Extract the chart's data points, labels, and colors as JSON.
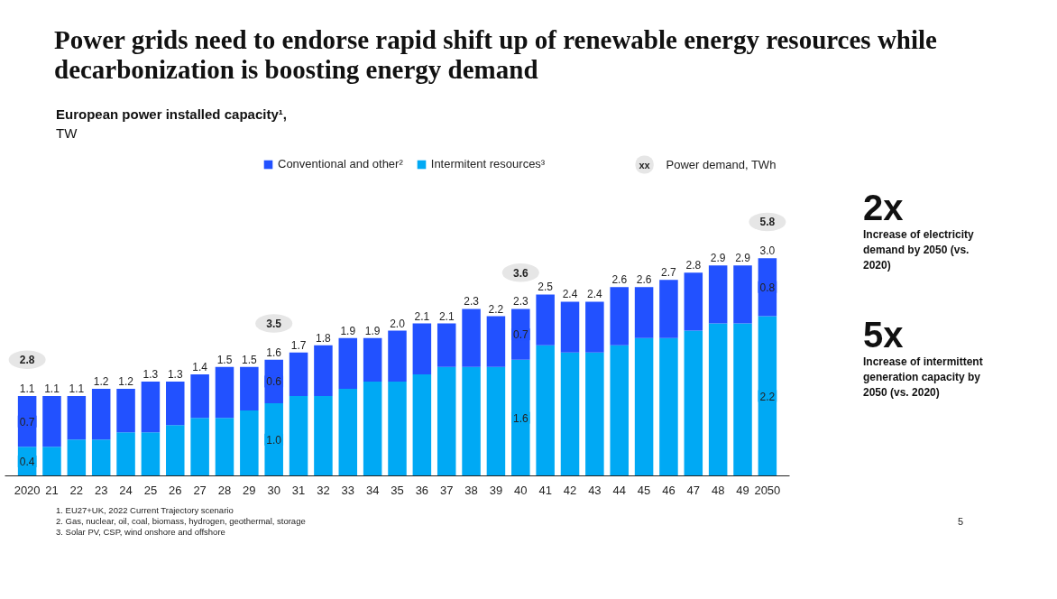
{
  "chart_data": {
    "type": "bar",
    "stacked": true,
    "title": "Power grids need to endorse rapid shift up of renewable energy resources while decarbonization is boosting energy demand",
    "subtitle": "European power installed capacity¹,",
    "categories": [
      "2020",
      "21",
      "22",
      "23",
      "24",
      "25",
      "26",
      "27",
      "28",
      "29",
      "30",
      "31",
      "32",
      "33",
      "34",
      "35",
      "36",
      "37",
      "38",
      "39",
      "40",
      "41",
      "42",
      "43",
      "44",
      "45",
      "46",
      "47",
      "48",
      "49",
      "2050"
    ],
    "series": [
      {
        "name": "Intermitent resources³",
        "color": "#00a9f4",
        "values": [
          0.4,
          0.4,
          0.5,
          0.5,
          0.6,
          0.6,
          0.7,
          0.8,
          0.8,
          0.9,
          1.0,
          1.1,
          1.1,
          1.2,
          1.3,
          1.3,
          1.4,
          1.5,
          1.5,
          1.5,
          1.6,
          1.8,
          1.7,
          1.7,
          1.8,
          1.9,
          1.9,
          2.0,
          2.1,
          2.1,
          2.2
        ],
        "value_labels": [
          "0.4",
          null,
          null,
          null,
          null,
          null,
          null,
          null,
          null,
          null,
          "1.0",
          null,
          null,
          null,
          null,
          null,
          null,
          null,
          null,
          null,
          "1.6",
          null,
          null,
          null,
          null,
          null,
          null,
          null,
          null,
          null,
          "2.2"
        ]
      },
      {
        "name": "Conventional and other²",
        "color": "#2251ff",
        "values": [
          0.7,
          0.7,
          0.6,
          0.7,
          0.6,
          0.7,
          0.6,
          0.6,
          0.7,
          0.6,
          0.6,
          0.6,
          0.7,
          0.7,
          0.6,
          0.7,
          0.7,
          0.6,
          0.8,
          0.7,
          0.7,
          0.7,
          0.7,
          0.7,
          0.8,
          0.7,
          0.8,
          0.8,
          0.8,
          0.8,
          0.8
        ],
        "value_labels": [
          "0.7",
          null,
          null,
          null,
          null,
          null,
          null,
          null,
          null,
          null,
          "0.6",
          null,
          null,
          null,
          null,
          null,
          null,
          null,
          null,
          null,
          "0.7",
          null,
          null,
          null,
          null,
          null,
          null,
          null,
          null,
          null,
          "0.8"
        ]
      }
    ],
    "totals": [
      "1.1",
      "1.1",
      "1.1",
      "1.2",
      "1.2",
      "1.3",
      "1.3",
      "1.4",
      "1.5",
      "1.5",
      "1.6",
      "1.7",
      "1.8",
      "1.9",
      "1.9",
      "2.0",
      "2.1",
      "2.1",
      "2.3",
      "2.2",
      "2.3",
      "2.5",
      "2.4",
      "2.4",
      "2.6",
      "2.6",
      "2.7",
      "2.8",
      "2.9",
      "2.9",
      "3.0"
    ],
    "legend": "top",
    "grid": false,
    "annotations": [
      {
        "text": "2.8",
        "x": "2020",
        "y": 1.1
      },
      {
        "text": "3.5",
        "x": "30",
        "y": 1.6
      },
      {
        "text": "3.6",
        "x": "40",
        "y": 2.3
      },
      {
        "text": "5.8",
        "x": "2050",
        "y": 3.0
      },
      "xx",
      "Power demand, TWh",
      "2x",
      "Increase of electricity demand by 2050 (vs. 2020)",
      "5x",
      "Increase of intermittent generation capacity by 2050 (vs. 2020)",
      "1. EU27+UK, 2022 Current Trajectory scenario",
      "2. Gas, nuclear, oil, coal, biomass, hydrogen, geothermal, storage",
      "3. Solar PV, CSP, wind onshore and offshore",
      "5",
      "TW"
    ]
  }
}
